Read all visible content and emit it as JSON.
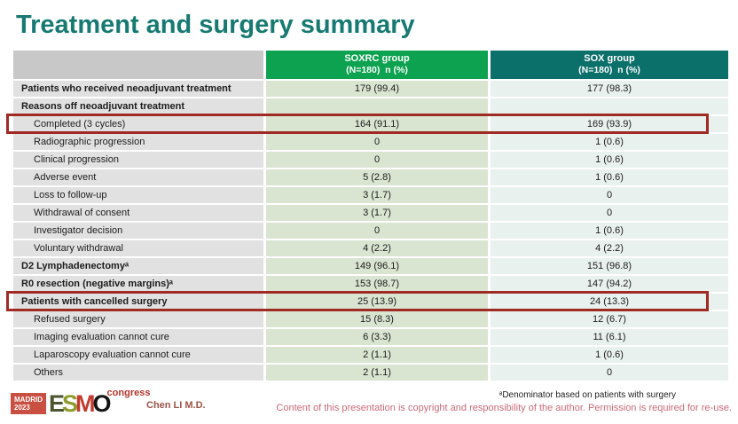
{
  "slide": {
    "title": "Treatment and surgery summary"
  },
  "colors": {
    "title_teal": "#177a72",
    "header_soxrc_green": "#0ca24f",
    "header_sox_teal": "#0b6f6a",
    "label_cell_gray": "#e1e1e1",
    "soxrc_cell_green": "#d9e4d1",
    "sox_cell_blue": "#e9f1ee",
    "highlight_border_red": "#a02b24",
    "copyright_pink": "#c96a78"
  },
  "table": {
    "columns": [
      {
        "label": "",
        "sublabel": ""
      },
      {
        "label": "SOXRC group",
        "sublabel": "(N=180)  n (%)"
      },
      {
        "label": "SOX group",
        "sublabel": "(N=180)  n (%)"
      }
    ],
    "rows": [
      {
        "label": "Patients who received neoadjuvant treatment",
        "soxrc": "179 (99.4)",
        "sox": "177 (98.3)",
        "bold": true
      },
      {
        "label": "Reasons off neoadjuvant treatment",
        "soxrc": "",
        "sox": "",
        "bold": true
      },
      {
        "label": "Completed (3 cycles)",
        "soxrc": "164 (91.1)",
        "sox": "169 (93.9)",
        "indent": true,
        "highlight": true
      },
      {
        "label": "Radiographic progression",
        "soxrc": "0",
        "sox": "1 (0.6)",
        "indent": true
      },
      {
        "label": "Clinical progression",
        "soxrc": "0",
        "sox": "1 (0.6)",
        "indent": true
      },
      {
        "label": "Adverse event",
        "soxrc": "5 (2.8)",
        "sox": "1 (0.6)",
        "indent": true
      },
      {
        "label": "Loss to follow-up",
        "soxrc": "3 (1.7)",
        "sox": "0",
        "indent": true
      },
      {
        "label": "Withdrawal of consent",
        "soxrc": "3 (1.7)",
        "sox": "0",
        "indent": true
      },
      {
        "label": "Investigator decision",
        "soxrc": "0",
        "sox": "1 (0.6)",
        "indent": true
      },
      {
        "label": "Voluntary withdrawal",
        "soxrc": "4 (2.2)",
        "sox": "4 (2.2)",
        "indent": true
      },
      {
        "label": "D2 Lymphadenectomyᵃ",
        "soxrc": "149 (96.1)",
        "sox": "151 (96.8)",
        "bold": true
      },
      {
        "label": "R0 resection (negative margins)ᵃ",
        "soxrc": "153 (98.7)",
        "sox": "147 (94.2)",
        "bold": true
      },
      {
        "label": "Patients with cancelled surgery",
        "soxrc": "25 (13.9)",
        "sox": "24 (13.3)",
        "bold": true,
        "highlight": true
      },
      {
        "label": "Refused surgery",
        "soxrc": "15 (8.3)",
        "sox": "12 (6.7)",
        "indent": true
      },
      {
        "label": "Imaging evaluation cannot cure",
        "soxrc": "6 (3.3)",
        "sox": "11 (6.1)",
        "indent": true
      },
      {
        "label": "Laparoscopy evaluation cannot cure",
        "soxrc": "2 (1.1)",
        "sox": "1 (0.6)",
        "indent": true
      },
      {
        "label": "Others",
        "soxrc": "2 (1.1)",
        "sox": "0",
        "indent": true
      }
    ]
  },
  "footnote": "ᵃDenominator based on patients with surgery",
  "footer": {
    "presenter": "Chen LI M.D.",
    "copyright": "Content of this presentation is copyright and responsibility of the author. Permission is required for re-use.",
    "logo": {
      "city": "MADRID",
      "year": "2023",
      "letters": [
        "E",
        "S",
        "M",
        "O"
      ],
      "congress": "congress"
    }
  }
}
